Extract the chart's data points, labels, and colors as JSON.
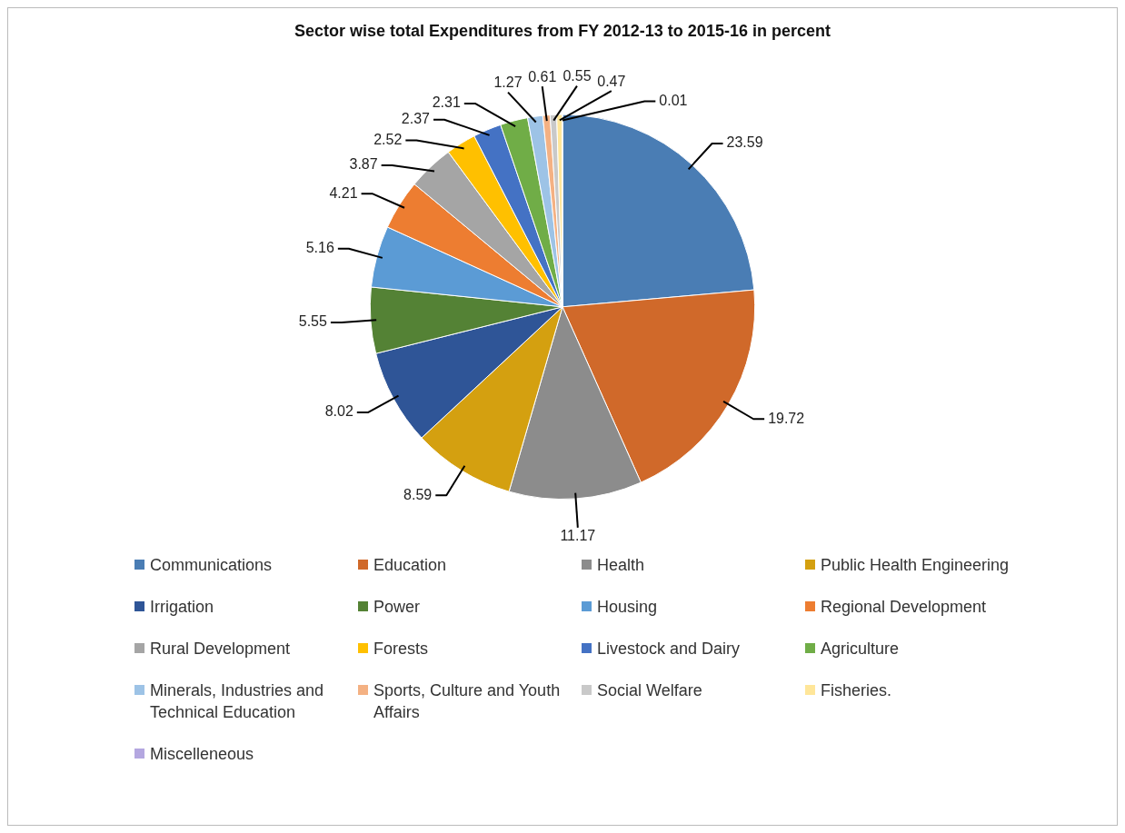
{
  "chart_data": {
    "type": "pie",
    "title": "Sector wise total Expenditures from FY 2012-13 to 2015-16 in percent",
    "categories": [
      "Communications",
      "Education",
      "Health",
      "Public Health Engineering",
      "Irrigation",
      "Power",
      "Housing",
      "Regional Development",
      "Rural Development",
      "Forests",
      "Livestock and Dairy",
      "Agriculture",
      "Minerals, Industries and Technical Education",
      "Sports, Culture and Youth Affairs",
      "Social Welfare",
      "Fisheries.",
      "Miscelleneous"
    ],
    "values": [
      23.59,
      19.72,
      11.17,
      8.59,
      8.02,
      5.55,
      5.16,
      4.21,
      3.87,
      2.52,
      2.37,
      2.31,
      1.27,
      0.61,
      0.55,
      0.47,
      0.01
    ],
    "colors": [
      "#4a7db4",
      "#d0692a",
      "#8c8c8c",
      "#d4a010",
      "#2f5597",
      "#548235",
      "#5b9bd5",
      "#ed7d31",
      "#a5a5a5",
      "#ffc000",
      "#4472c4",
      "#70ad47",
      "#9dc3e6",
      "#f4b183",
      "#c9c9c9",
      "#ffe699",
      "#b4a7e0"
    ],
    "data_labels": true,
    "legend": "bottom"
  }
}
